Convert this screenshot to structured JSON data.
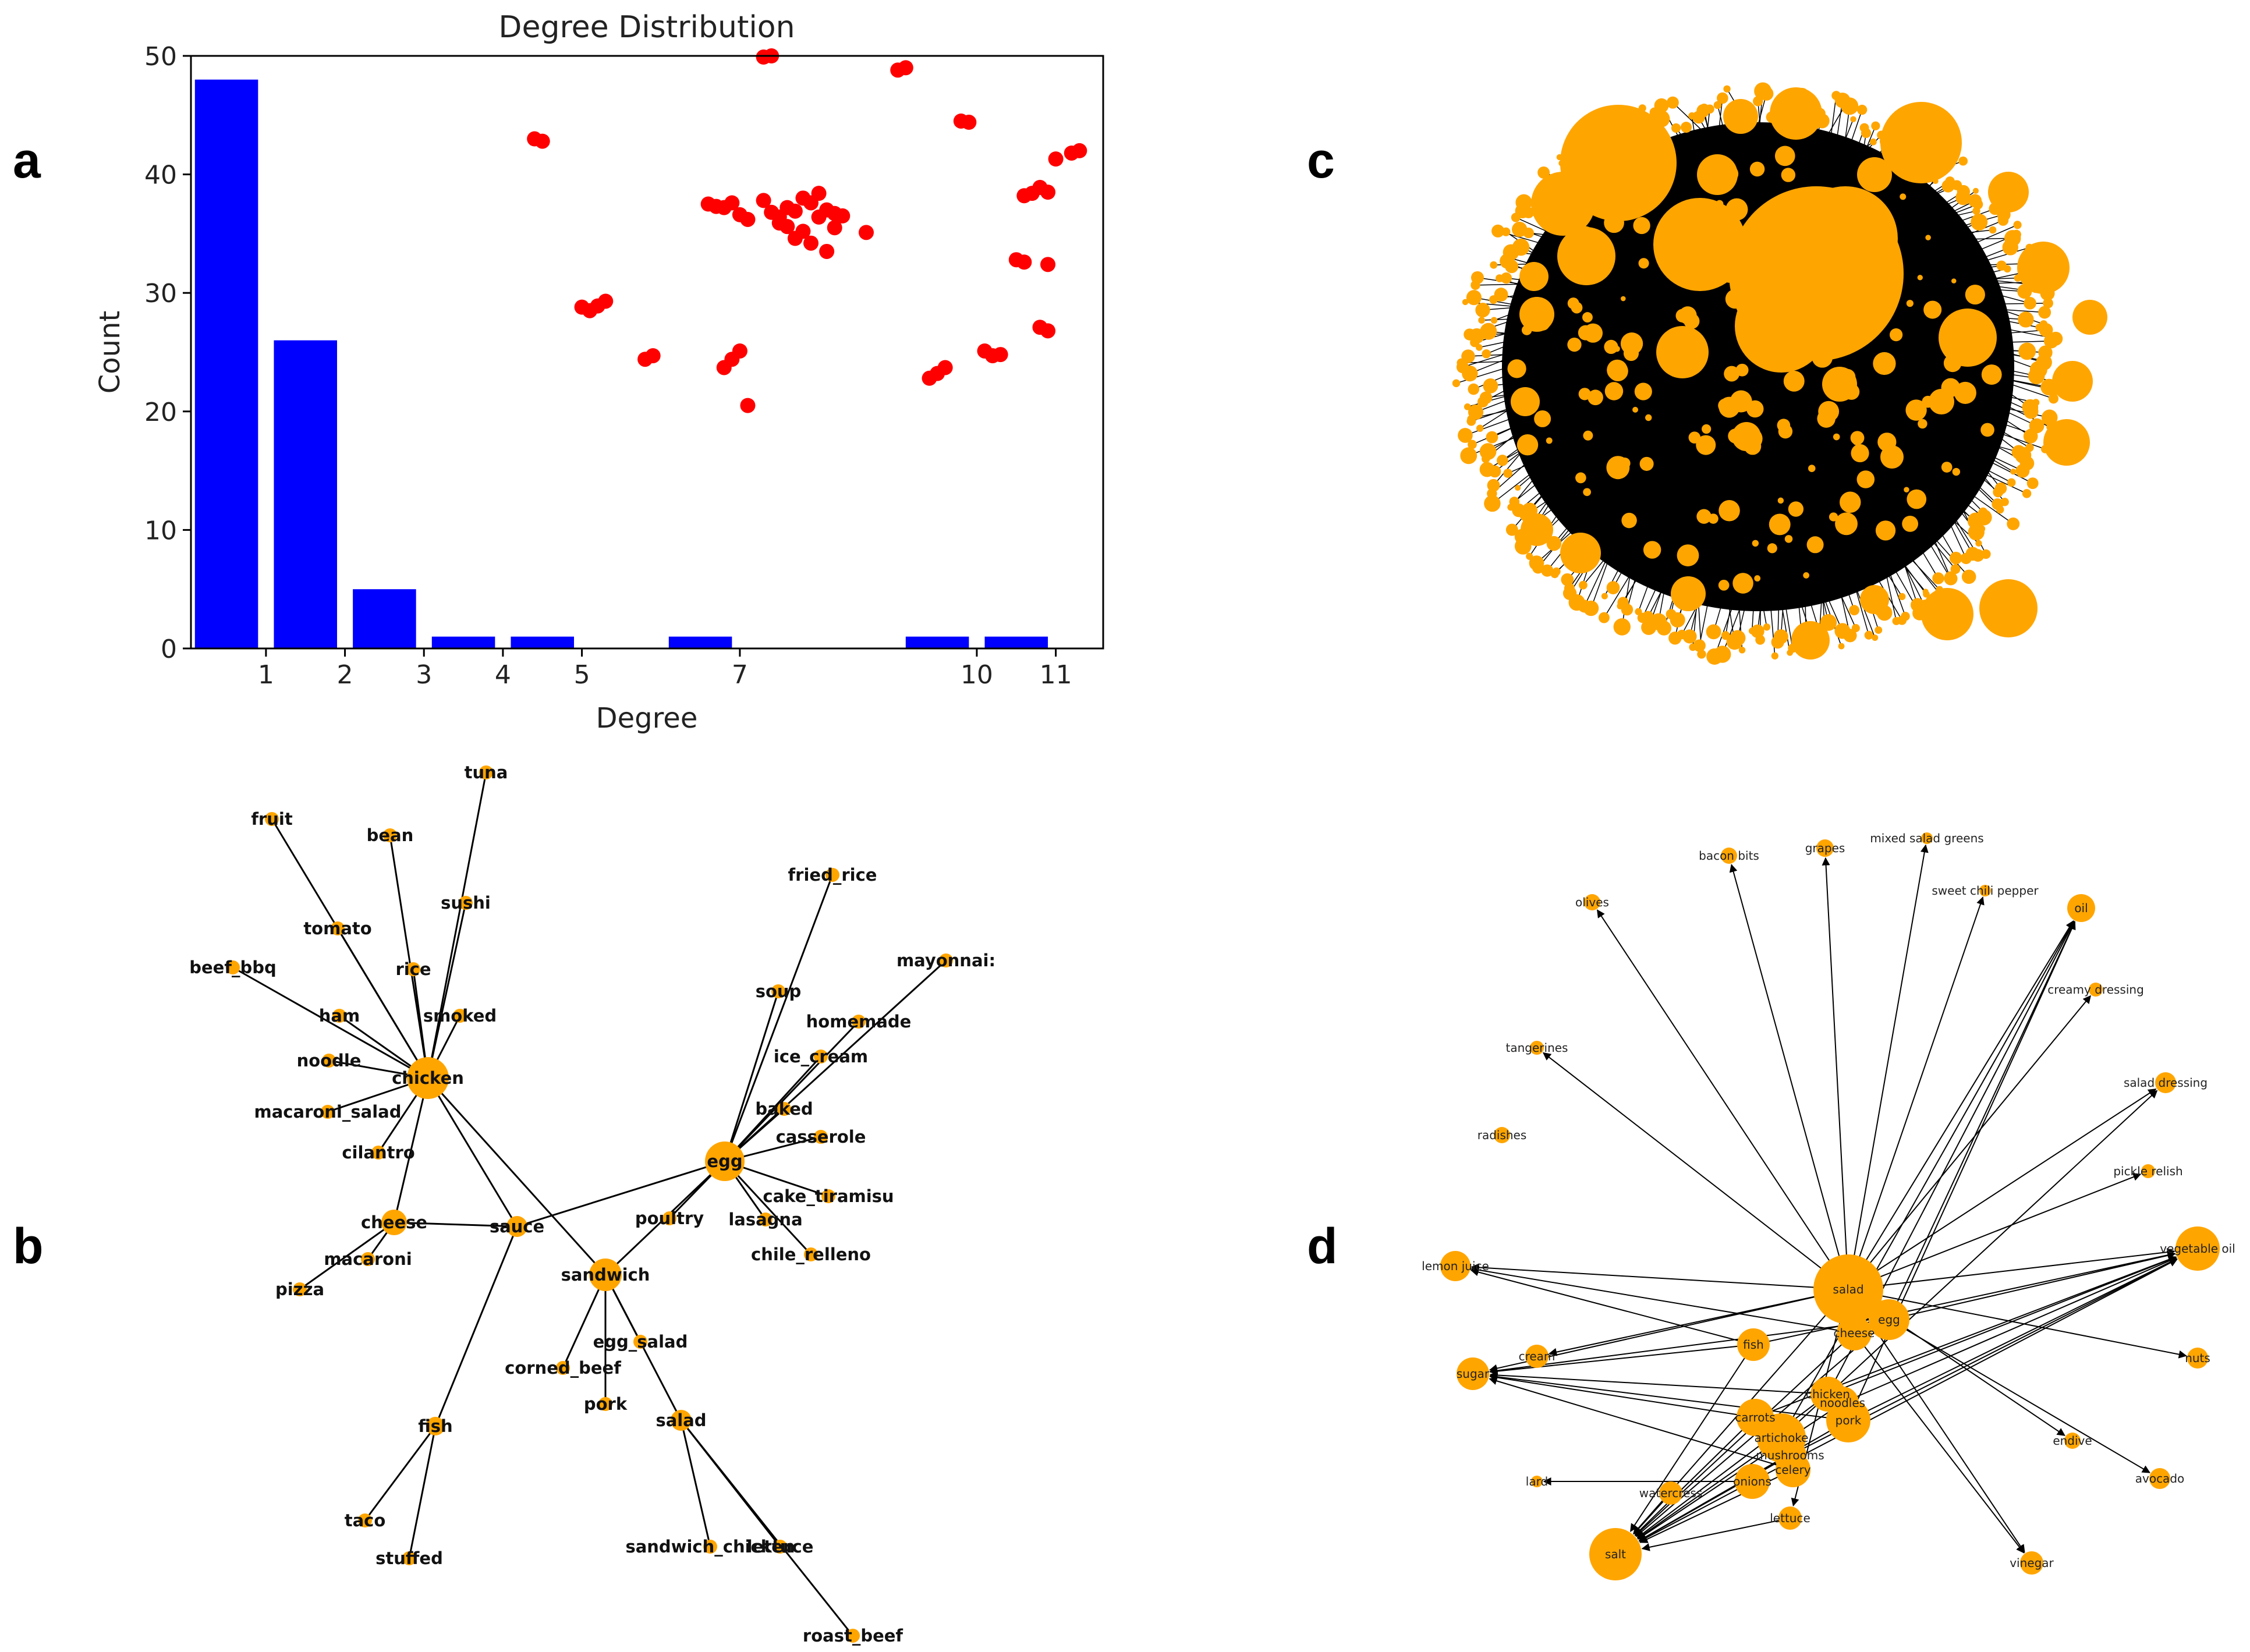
{
  "panel_labels": {
    "a": "a",
    "b": "b",
    "c": "c",
    "d": "d"
  },
  "chart_data": [
    {
      "panel": "a",
      "type": "bar",
      "title": "Degree Distribution",
      "xlabel": "Degree",
      "ylabel": "Count",
      "x_ticks": [
        "1",
        "2",
        "3",
        "4",
        "5",
        "7",
        "10",
        "11"
      ],
      "y_ticks": [
        "0",
        "10",
        "20",
        "30",
        "40",
        "50"
      ],
      "ylim": [
        0,
        50
      ],
      "bars": [
        {
          "category": "1",
          "value": 48
        },
        {
          "category": "2",
          "value": 26
        },
        {
          "category": "3",
          "value": 5
        },
        {
          "category": "4",
          "value": 1
        },
        {
          "category": "5",
          "value": 1
        },
        {
          "category": "7",
          "value": 1
        },
        {
          "category": "10",
          "value": 1
        },
        {
          "category": "11",
          "value": 1
        }
      ],
      "bar_color": "#0000ff",
      "scatter_color": "#ff0000",
      "scatter": {
        "x": [
          4.4,
          4.5,
          5.0,
          5.1,
          5.2,
          5.3,
          5.8,
          5.9,
          6.6,
          6.7,
          6.8,
          6.9,
          7.0,
          7.1,
          7.3,
          7.4,
          7.5,
          7.5,
          7.6,
          7.6,
          7.7,
          7.7,
          7.8,
          7.8,
          7.9,
          7.9,
          8.0,
          8.0,
          8.1,
          8.2,
          8.2,
          8.3,
          8.6,
          8.1,
          7.3,
          7.4,
          6.8,
          6.9,
          7.0,
          7.1,
          9.0,
          9.1,
          9.4,
          9.5,
          9.6,
          9.8,
          9.9,
          10.1,
          10.2,
          10.3,
          10.6,
          10.7,
          10.8,
          10.9,
          11.0,
          11.2,
          11.3,
          10.8,
          10.9,
          10.5,
          10.6,
          10.9
        ],
        "y": [
          43.0,
          42.8,
          28.8,
          28.5,
          28.9,
          29.3,
          24.4,
          24.7,
          37.5,
          37.3,
          37.2,
          37.6,
          36.6,
          36.2,
          37.8,
          36.8,
          36.4,
          35.9,
          37.2,
          35.6,
          36.9,
          34.6,
          38.0,
          35.2,
          37.6,
          34.2,
          38.4,
          36.4,
          37.0,
          35.5,
          36.7,
          36.5,
          35.1,
          33.5,
          49.9,
          50.0,
          23.7,
          24.4,
          25.1,
          20.5,
          48.8,
          49.0,
          22.8,
          23.2,
          23.7,
          44.5,
          44.4,
          25.1,
          24.7,
          24.8,
          38.2,
          38.4,
          38.9,
          38.5,
          41.3,
          41.8,
          42.0,
          27.1,
          26.8,
          32.8,
          32.6,
          32.4
        ]
      }
    },
    {
      "panel": "b",
      "type": "network",
      "nodes": [
        "tuna",
        "fruit",
        "bean",
        "sushi",
        "tomato",
        "rice",
        "beef_bbq",
        "ham",
        "smoked",
        "noodle",
        "chicken",
        "macaroni_salad",
        "cilantro",
        "cheese",
        "sauce",
        "macaroni",
        "pizza",
        "fish",
        "taco",
        "stuffed",
        "fried_rice",
        "mayonnaise",
        "soup",
        "homemade",
        "ice_cream",
        "baked",
        "casserole",
        "egg",
        "cake_tiramisu",
        "poultry",
        "lasagna",
        "chile_relleno",
        "sandwich",
        "egg_salad",
        "corned_beef",
        "pork",
        "salad",
        "sandwich_chicken",
        "lettuce",
        "roast_beef"
      ],
      "node_labels": [
        "tuna",
        "fruit",
        "bean",
        "sushi",
        "tomato",
        "rice",
        "beef_bbq",
        "ham",
        "smoked",
        "noodle",
        "chicken",
        "macaroni_salad",
        "cilantro",
        "cheese",
        "sauce",
        "macaroni",
        "pizza",
        "fish",
        "taco",
        "stuffed",
        "fried_rice",
        "mayonnai:",
        "soup",
        "homemade",
        "ice_cream",
        "baked",
        "casserole",
        "egg",
        "cake_tiramisu",
        "poultry",
        "lasagna",
        "chile_relleno",
        "sandwich",
        "egg_salad",
        "corned_beef",
        "pork",
        "salad",
        "sandwich_chicken",
        "lettuce",
        "roast_beef"
      ],
      "edges": [
        [
          "chicken",
          "tuna"
        ],
        [
          "chicken",
          "fruit"
        ],
        [
          "chicken",
          "bean"
        ],
        [
          "chicken",
          "sushi"
        ],
        [
          "chicken",
          "tomato"
        ],
        [
          "chicken",
          "rice"
        ],
        [
          "chicken",
          "beef_bbq"
        ],
        [
          "chicken",
          "ham"
        ],
        [
          "chicken",
          "smoked"
        ],
        [
          "chicken",
          "noodle"
        ],
        [
          "chicken",
          "macaroni_salad"
        ],
        [
          "chicken",
          "cilantro"
        ],
        [
          "chicken",
          "cheese"
        ],
        [
          "chicken",
          "sauce"
        ],
        [
          "chicken",
          "sandwich"
        ],
        [
          "cheese",
          "sauce"
        ],
        [
          "cheese",
          "macaroni"
        ],
        [
          "cheese",
          "pizza"
        ],
        [
          "sauce",
          "fish"
        ],
        [
          "fish",
          "taco"
        ],
        [
          "fish",
          "stuffed"
        ],
        [
          "egg",
          "sandwich"
        ],
        [
          "egg",
          "sauce"
        ],
        [
          "egg",
          "fried_rice"
        ],
        [
          "egg",
          "mayonnaise"
        ],
        [
          "egg",
          "soup"
        ],
        [
          "egg",
          "homemade"
        ],
        [
          "egg",
          "ice_cream"
        ],
        [
          "egg",
          "baked"
        ],
        [
          "egg",
          "casserole"
        ],
        [
          "egg",
          "cake_tiramisu"
        ],
        [
          "egg",
          "poultry"
        ],
        [
          "egg",
          "lasagna"
        ],
        [
          "egg",
          "chile_relleno"
        ],
        [
          "sandwich",
          "egg_salad"
        ],
        [
          "sandwich",
          "corned_beef"
        ],
        [
          "sandwich",
          "pork"
        ],
        [
          "sandwich",
          "salad"
        ],
        [
          "salad",
          "sandwich_chicken"
        ],
        [
          "salad",
          "lettuce"
        ],
        [
          "salad",
          "roast_beef"
        ]
      ],
      "node_color": "#ffa500"
    },
    {
      "panel": "c",
      "type": "network",
      "node_color": "#ffa500",
      "edge_color": "#000000"
    },
    {
      "panel": "d",
      "type": "network",
      "nodes": [
        "salad",
        "egg",
        "cheese",
        "fish",
        "chicken",
        "noodles",
        "pork",
        "carrots",
        "artichoke",
        "mushrooms",
        "celery",
        "onions",
        "salt",
        "sugar",
        "cream",
        "lemon juice",
        "olives",
        "bacon bits",
        "grapes",
        "mixed salad greens",
        "sweet chili pepper",
        "oil",
        "creamy dressing",
        "tangerines",
        "salad dressing",
        "radishes",
        "pickle relish",
        "vegetable oil",
        "nuts",
        "endive",
        "avocado",
        "lard",
        "watercress",
        "lettuce",
        "vinegar"
      ],
      "edges": [
        [
          "salad",
          "olives"
        ],
        [
          "salad",
          "bacon bits"
        ],
        [
          "salad",
          "grapes"
        ],
        [
          "salad",
          "mixed salad greens"
        ],
        [
          "salad",
          "sweet chili pepper"
        ],
        [
          "salad",
          "oil"
        ],
        [
          "salad",
          "creamy dressing"
        ],
        [
          "salad",
          "tangerines"
        ],
        [
          "salad",
          "salad dressing"
        ],
        [
          "salad",
          "pickle relish"
        ],
        [
          "salad",
          "vegetable oil"
        ],
        [
          "salad",
          "nuts"
        ],
        [
          "salad",
          "lemon juice"
        ],
        [
          "salad",
          "sugar"
        ],
        [
          "salad",
          "salt"
        ],
        [
          "salad",
          "cream"
        ],
        [
          "salad",
          "vinegar"
        ],
        [
          "salad",
          "endive"
        ],
        [
          "salad",
          "lettuce"
        ],
        [
          "egg",
          "vegetable oil"
        ],
        [
          "egg",
          "salt"
        ],
        [
          "egg",
          "sugar"
        ],
        [
          "egg",
          "avocado"
        ],
        [
          "egg",
          "oil"
        ],
        [
          "cheese",
          "salt"
        ],
        [
          "cheese",
          "lemon juice"
        ],
        [
          "cheese",
          "vinegar"
        ],
        [
          "fish",
          "salt"
        ],
        [
          "fish",
          "sugar"
        ],
        [
          "fish",
          "lemon juice"
        ],
        [
          "fish",
          "vegetable oil"
        ],
        [
          "chicken",
          "salt"
        ],
        [
          "chicken",
          "vegetable oil"
        ],
        [
          "chicken",
          "oil"
        ],
        [
          "chicken",
          "sugar"
        ],
        [
          "noodles",
          "salt"
        ],
        [
          "noodles",
          "vegetable oil"
        ],
        [
          "pork",
          "salt"
        ],
        [
          "pork",
          "sugar"
        ],
        [
          "pork",
          "oil"
        ],
        [
          "pork",
          "vegetable oil"
        ],
        [
          "carrots",
          "salt"
        ],
        [
          "carrots",
          "sugar"
        ],
        [
          "carrots",
          "vegetable oil"
        ],
        [
          "artichoke",
          "salt"
        ],
        [
          "artichoke",
          "oil"
        ],
        [
          "artichoke",
          "salad dressing"
        ],
        [
          "mushrooms",
          "salt"
        ],
        [
          "mushrooms",
          "vegetable oil"
        ],
        [
          "celery",
          "salt"
        ],
        [
          "celery",
          "sugar"
        ],
        [
          "onions",
          "salt"
        ],
        [
          "onions",
          "vegetable oil"
        ],
        [
          "onions",
          "lard"
        ],
        [
          "watercress",
          "salt"
        ],
        [
          "lettuce",
          "salt"
        ]
      ],
      "node_color": "#ffa500",
      "edge_color": "#000000"
    }
  ]
}
